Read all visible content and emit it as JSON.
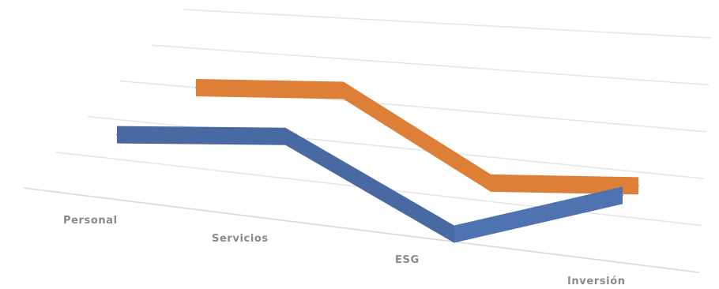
{
  "chart_data": {
    "type": "line",
    "style": "3d-ribbon",
    "categories": [
      "Personal",
      "Servicios",
      "ESG",
      "Inversión"
    ],
    "series": [
      {
        "values": [
          3.2,
          3.9,
          0.8,
          3.1
        ],
        "color": "#4F72B0"
      },
      {
        "values": [
          3.6,
          4.2,
          1.0,
          1.6
        ],
        "color": "#F08A3C"
      }
    ],
    "title": "",
    "xlabel": "",
    "ylabel": "",
    "ylim": [
      0,
      5
    ],
    "grid": true,
    "legend": "none"
  }
}
